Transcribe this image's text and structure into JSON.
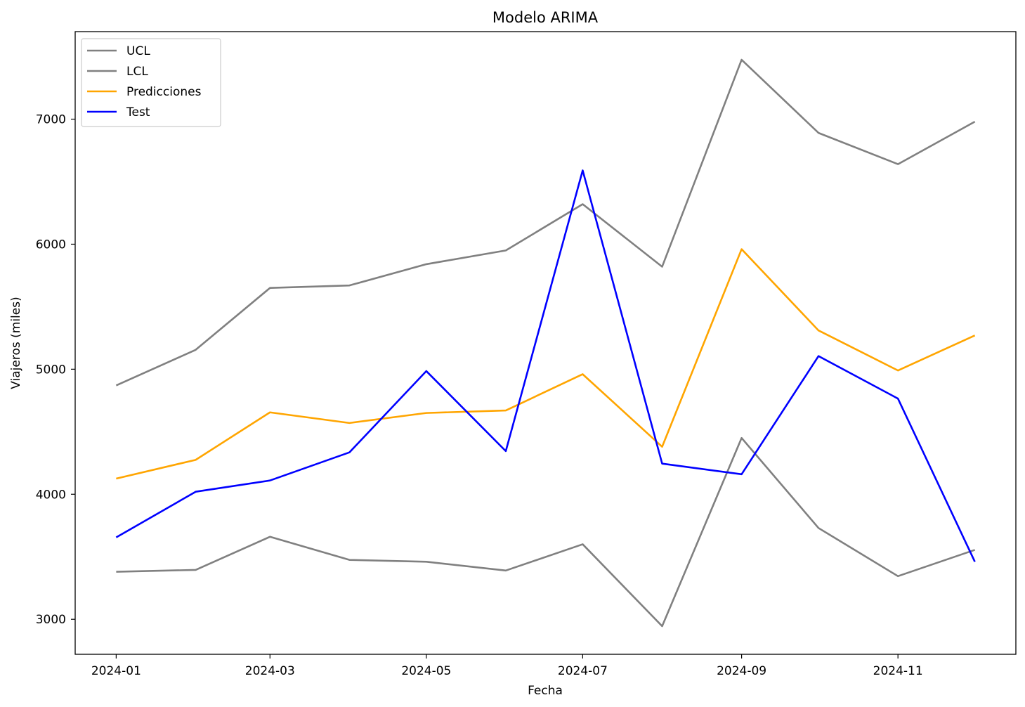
{
  "chart_data": {
    "type": "line",
    "title": "Modelo ARIMA",
    "xlabel": "Fecha",
    "ylabel": "Viajeros (miles)",
    "x": [
      "2024-01-01",
      "2024-02-01",
      "2024-03-01",
      "2024-04-01",
      "2024-05-01",
      "2024-06-01",
      "2024-07-01",
      "2024-08-01",
      "2024-09-01",
      "2024-10-01",
      "2024-11-01",
      "2024-12-01"
    ],
    "xlim": [
      "2023-12-16",
      "2024-12-17"
    ],
    "ylim": [
      2720,
      7700
    ],
    "x_ticks": [
      {
        "date": "2024-01-01",
        "label": "2024-01"
      },
      {
        "date": "2024-03-01",
        "label": "2024-03"
      },
      {
        "date": "2024-05-01",
        "label": "2024-05"
      },
      {
        "date": "2024-07-01",
        "label": "2024-07"
      },
      {
        "date": "2024-09-01",
        "label": "2024-09"
      },
      {
        "date": "2024-11-01",
        "label": "2024-11"
      }
    ],
    "y_ticks": [
      3000,
      4000,
      5000,
      6000,
      7000
    ],
    "grid": false,
    "legend_position": "top-left",
    "series": [
      {
        "name": "UCL",
        "color": "#808080",
        "values": [
          4870,
          5155,
          5650,
          5670,
          5840,
          5950,
          6320,
          5820,
          7475,
          6890,
          6640,
          6980
        ]
      },
      {
        "name": "LCL",
        "color": "#808080",
        "values": [
          3380,
          3395,
          3660,
          3475,
          3460,
          3390,
          3600,
          2945,
          4450,
          3730,
          3345,
          3555
        ]
      },
      {
        "name": "Predicciones",
        "color": "#ffa500",
        "values": [
          4125,
          4275,
          4655,
          4570,
          4650,
          4670,
          4960,
          4380,
          5960,
          5310,
          4990,
          5270
        ]
      },
      {
        "name": "Test",
        "color": "#0000ff",
        "values": [
          3655,
          4020,
          4110,
          4335,
          4985,
          4345,
          6590,
          4245,
          4160,
          5105,
          4765,
          3460
        ]
      }
    ]
  }
}
